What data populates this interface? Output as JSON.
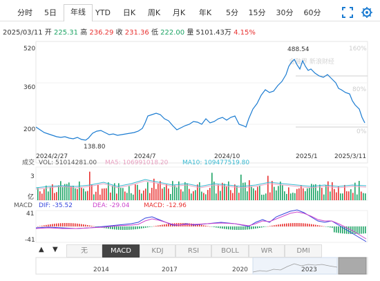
{
  "tabs": [
    "分时",
    "5日",
    "年线",
    "YTD",
    "日K",
    "周K",
    "月K",
    "年K",
    "5分",
    "15分",
    "30分",
    "60分"
  ],
  "active_tab": 2,
  "icons": {
    "fullscreen": "fullscreen-icon",
    "settings": "settings-icon"
  },
  "info": {
    "date": "2025/03/11",
    "open_label": "开",
    "open": "225.31",
    "high_label": "高",
    "high": "236.29",
    "close_label": "收",
    "close": "231.36",
    "low_label": "低",
    "low": "222.00",
    "vol_label": "量",
    "vol": "5101.43万",
    "change": "4.15%"
  },
  "watermark": "金融界 新浪财经",
  "price_chart": {
    "y_ticks": [
      "520",
      "360",
      "200"
    ],
    "pct_ticks": [
      "160%",
      "80%",
      "0%"
    ],
    "x_ticks": [
      "2024/2/27",
      "2024/7",
      "2024/10",
      "2025/1",
      "2025/3/11"
    ],
    "max_label": "488.54",
    "min_label": "138.80",
    "color": "#1a7bd1"
  },
  "volume": {
    "title": "成交",
    "vol_text": "VOL: 51014281.00",
    "ma5_text": "MA5: 106991018.20",
    "ma10_text": "MA10: 109477519.80",
    "y_top": "3",
    "y_bottom": "亿",
    "ma5_color": "#e8a0c0",
    "ma10_color": "#35b8d0"
  },
  "macd": {
    "title": "MACD",
    "dif_text": "DIF: -35.52",
    "dea_text": "DEA: -29.04",
    "macd_text": "MACD: -12.96",
    "y_top": "41",
    "y_bottom": "-41",
    "dif_color": "#3344dd",
    "dea_color": "#cc44cc"
  },
  "indicator_tabs": [
    "无",
    "MACD",
    "KDJ",
    "RSI",
    "BOLL",
    "WR",
    "DMI"
  ],
  "active_indicator": 1,
  "arrows": {
    "up": "▲",
    "down": "▼"
  },
  "navigator": {
    "years": [
      "2014",
      "2017",
      "2020",
      "2023"
    ]
  }
}
